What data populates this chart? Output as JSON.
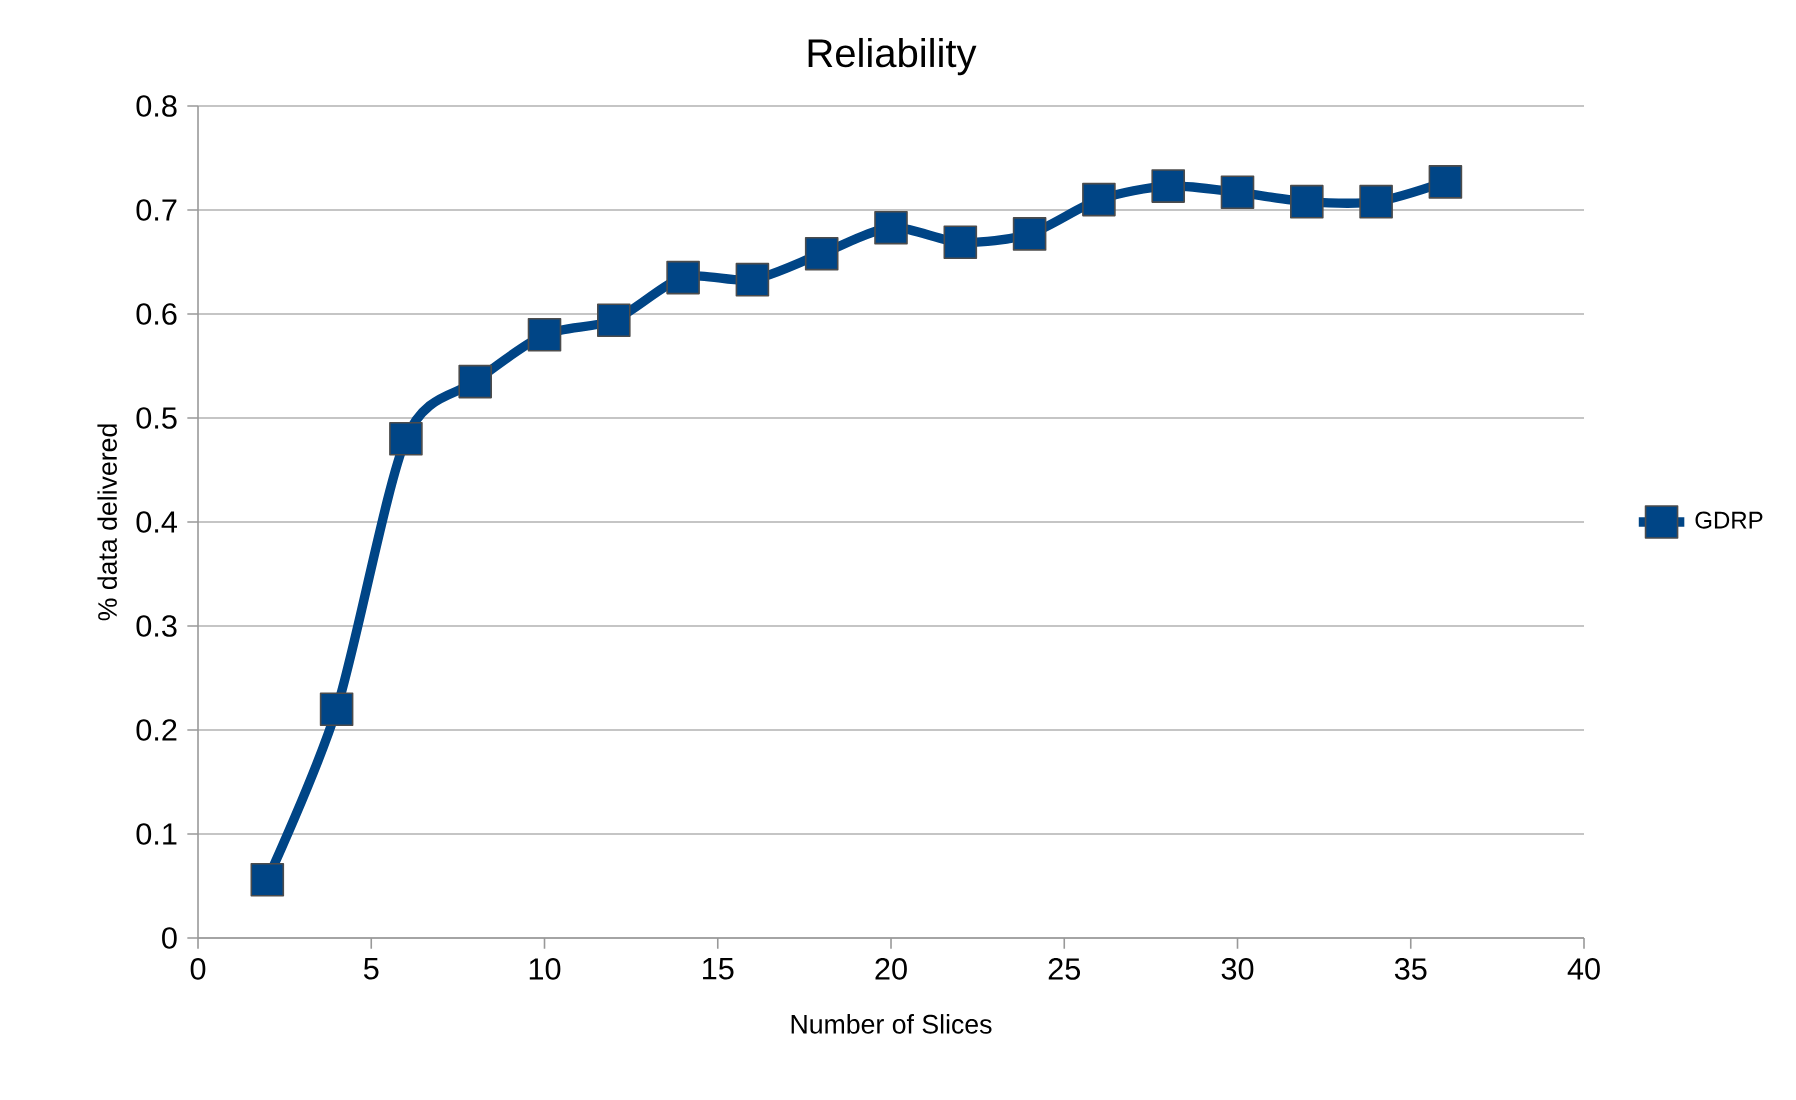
{
  "chart_data": {
    "type": "line",
    "title": "Reliability",
    "xlabel": "Number of Slices",
    "ylabel": "% data delivered",
    "x": [
      2,
      4,
      6,
      8,
      10,
      12,
      14,
      16,
      18,
      20,
      22,
      24,
      26,
      28,
      30,
      32,
      34,
      36
    ],
    "series": [
      {
        "name": "GDRP",
        "color": "#004586",
        "values": [
          0.056,
          0.22,
          0.48,
          0.535,
          0.58,
          0.594,
          0.635,
          0.633,
          0.658,
          0.683,
          0.669,
          0.677,
          0.71,
          0.723,
          0.717,
          0.708,
          0.708,
          0.727
        ]
      }
    ],
    "xlim": [
      0,
      40
    ],
    "ylim": [
      0,
      0.8
    ],
    "xticks": [
      0,
      5,
      10,
      15,
      20,
      25,
      30,
      35,
      40
    ],
    "yticks": [
      0,
      0.1,
      0.2,
      0.3,
      0.4,
      0.5,
      0.6,
      0.7,
      0.8
    ],
    "grid": "y",
    "legend": "right",
    "marker": "square",
    "line_style": "solid"
  }
}
